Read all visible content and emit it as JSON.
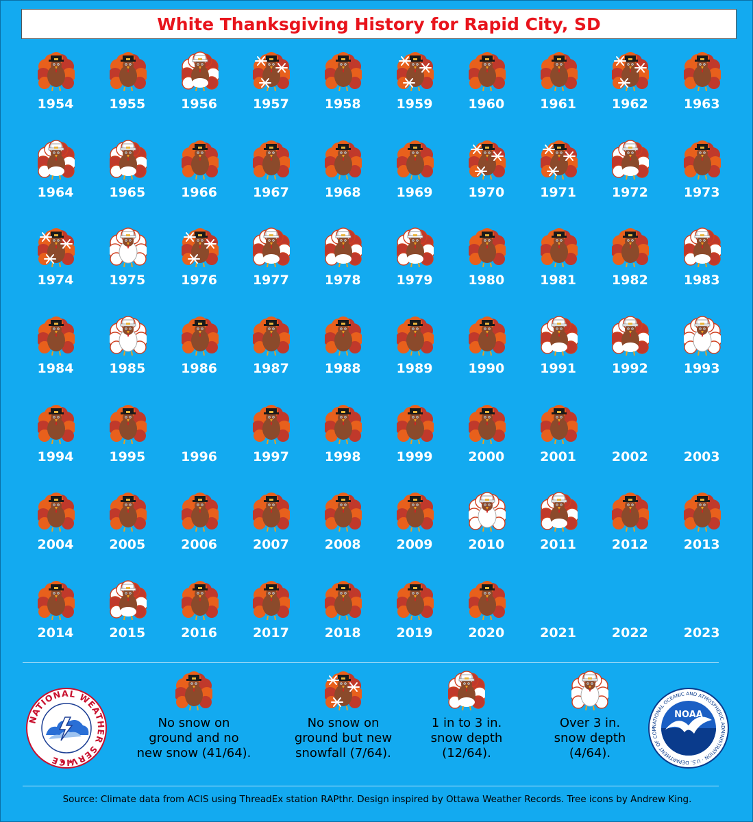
{
  "title": "White Thanksgiving History for Rapid City, SD",
  "colors": {
    "background": "#13aaf0",
    "title_text": "#e8141c",
    "year_text": "#ffffff"
  },
  "years": [
    {
      "year": "1954",
      "category": "none"
    },
    {
      "year": "1955",
      "category": "none"
    },
    {
      "year": "1956",
      "category": "depth1to3"
    },
    {
      "year": "1957",
      "category": "newsnow"
    },
    {
      "year": "1958",
      "category": "none"
    },
    {
      "year": "1959",
      "category": "newsnow"
    },
    {
      "year": "1960",
      "category": "none"
    },
    {
      "year": "1961",
      "category": "none"
    },
    {
      "year": "1962",
      "category": "newsnow"
    },
    {
      "year": "1963",
      "category": "none"
    },
    {
      "year": "1964",
      "category": "depth1to3"
    },
    {
      "year": "1965",
      "category": "depth1to3"
    },
    {
      "year": "1966",
      "category": "none"
    },
    {
      "year": "1967",
      "category": "none"
    },
    {
      "year": "1968",
      "category": "none"
    },
    {
      "year": "1969",
      "category": "none"
    },
    {
      "year": "1970",
      "category": "newsnow"
    },
    {
      "year": "1971",
      "category": "newsnow"
    },
    {
      "year": "1972",
      "category": "depth1to3"
    },
    {
      "year": "1973",
      "category": "none"
    },
    {
      "year": "1974",
      "category": "newsnow"
    },
    {
      "year": "1975",
      "category": "over3"
    },
    {
      "year": "1976",
      "category": "newsnow"
    },
    {
      "year": "1977",
      "category": "depth1to3"
    },
    {
      "year": "1978",
      "category": "depth1to3"
    },
    {
      "year": "1979",
      "category": "depth1to3"
    },
    {
      "year": "1980",
      "category": "none"
    },
    {
      "year": "1981",
      "category": "none"
    },
    {
      "year": "1982",
      "category": "none"
    },
    {
      "year": "1983",
      "category": "depth1to3"
    },
    {
      "year": "1984",
      "category": "none"
    },
    {
      "year": "1985",
      "category": "over3"
    },
    {
      "year": "1986",
      "category": "none"
    },
    {
      "year": "1987",
      "category": "none"
    },
    {
      "year": "1988",
      "category": "none"
    },
    {
      "year": "1989",
      "category": "none"
    },
    {
      "year": "1990",
      "category": "none"
    },
    {
      "year": "1991",
      "category": "depth1to3"
    },
    {
      "year": "1992",
      "category": "depth1to3"
    },
    {
      "year": "1993",
      "category": "over3"
    },
    {
      "year": "1994",
      "category": "none"
    },
    {
      "year": "1995",
      "category": "none"
    },
    {
      "year": "1996",
      "category": "blank"
    },
    {
      "year": "1997",
      "category": "none"
    },
    {
      "year": "1998",
      "category": "none"
    },
    {
      "year": "1999",
      "category": "none"
    },
    {
      "year": "2000",
      "category": "none"
    },
    {
      "year": "2001",
      "category": "none"
    },
    {
      "year": "2002",
      "category": "blank"
    },
    {
      "year": "2003",
      "category": "blank"
    },
    {
      "year": "2004",
      "category": "none"
    },
    {
      "year": "2005",
      "category": "none"
    },
    {
      "year": "2006",
      "category": "none"
    },
    {
      "year": "2007",
      "category": "none"
    },
    {
      "year": "2008",
      "category": "none"
    },
    {
      "year": "2009",
      "category": "none"
    },
    {
      "year": "2010",
      "category": "over3"
    },
    {
      "year": "2011",
      "category": "depth1to3"
    },
    {
      "year": "2012",
      "category": "none"
    },
    {
      "year": "2013",
      "category": "none"
    },
    {
      "year": "2014",
      "category": "none"
    },
    {
      "year": "2015",
      "category": "depth1to3"
    },
    {
      "year": "2016",
      "category": "none"
    },
    {
      "year": "2017",
      "category": "none"
    },
    {
      "year": "2018",
      "category": "none"
    },
    {
      "year": "2019",
      "category": "none"
    },
    {
      "year": "2020",
      "category": "none"
    },
    {
      "year": "2021",
      "category": "blank"
    },
    {
      "year": "2022",
      "category": "blank"
    },
    {
      "year": "2023",
      "category": "blank"
    }
  ],
  "legend": [
    {
      "category": "none",
      "lines": [
        "No snow on",
        "ground and no",
        "new snow (41/64)."
      ]
    },
    {
      "category": "newsnow",
      "lines": [
        "No snow on",
        "ground but new",
        "snowfall (7/64)."
      ]
    },
    {
      "category": "depth1to3",
      "lines": [
        "1 in to 3 in.",
        "snow depth",
        "(12/64)."
      ]
    },
    {
      "category": "over3",
      "lines": [
        "Over 3 in.",
        "snow depth",
        "(4/64)."
      ]
    }
  ],
  "logos": {
    "nws_text": "NATIONAL WEATHER SERVICE",
    "noaa_text": "NOAA",
    "noaa_ring_text": "NATIONAL OCEANIC AND ATMOSPHERIC ADMINISTRATION · U.S. DEPARTMENT OF COMMERCE"
  },
  "footer": "Source: Climate data from ACIS using ThreadEx station RAPthr. Design inspired by Ottawa Weather Records. Tree icons by Andrew King."
}
